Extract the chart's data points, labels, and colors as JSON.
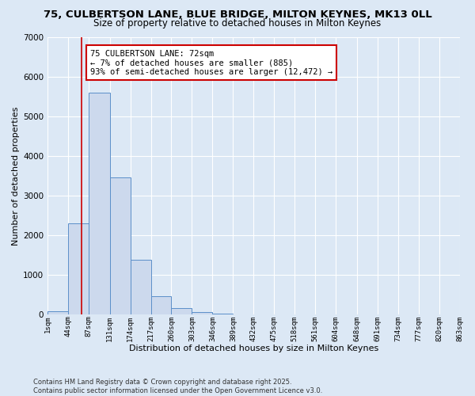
{
  "title": "75, CULBERTSON LANE, BLUE BRIDGE, MILTON KEYNES, MK13 0LL",
  "subtitle": "Size of property relative to detached houses in Milton Keynes",
  "xlabel": "Distribution of detached houses by size in Milton Keynes",
  "ylabel": "Number of detached properties",
  "bin_edges": [
    1,
    44,
    87,
    131,
    174,
    217,
    260,
    303,
    346,
    389,
    432,
    475,
    518,
    561,
    604,
    648,
    691,
    734,
    777,
    820,
    863
  ],
  "bar_heights": [
    75,
    2300,
    5600,
    3450,
    1380,
    460,
    165,
    55,
    20,
    5,
    2,
    1,
    0,
    0,
    0,
    0,
    0,
    0,
    0,
    0
  ],
  "bar_color": "#ccd9ed",
  "bar_edge_color": "#5b8fc9",
  "bar_linewidth": 0.7,
  "vline_x": 72,
  "vline_color": "#cc0000",
  "vline_linewidth": 1.2,
  "annotation_text": "75 CULBERTSON LANE: 72sqm\n← 7% of detached houses are smaller (885)\n93% of semi-detached houses are larger (12,472) →",
  "annotation_box_color": "#ffffff",
  "annotation_box_edgecolor": "#cc0000",
  "annotation_fontsize": 7.5,
  "ylim": [
    0,
    7000
  ],
  "yticks": [
    0,
    1000,
    2000,
    3000,
    4000,
    5000,
    6000,
    7000
  ],
  "bg_color": "#dce8f5",
  "plot_bg_color": "#dce8f5",
  "grid_color": "#ffffff",
  "title_fontsize": 9.5,
  "subtitle_fontsize": 8.5,
  "ylabel_fontsize": 8,
  "xlabel_fontsize": 8,
  "footer_line1": "Contains HM Land Registry data © Crown copyright and database right 2025.",
  "footer_line2": "Contains public sector information licensed under the Open Government Licence v3.0."
}
